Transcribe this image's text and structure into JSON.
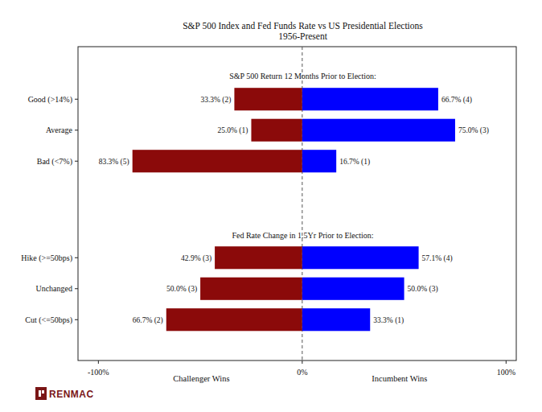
{
  "chart_data": [
    {
      "type": "bar",
      "orientation": "horizontal",
      "data_labels": true,
      "grid": false,
      "tick_labels": "y",
      "title": "S&P 500 Index and Fed Funds Rate vs US Presidential Elections",
      "subtitle": "1956-Present",
      "panel_title": "S&P 500 Return 12 Months Prior to Election:",
      "categories": [
        "Good (>14%)",
        "Average",
        "Bad (<7%)"
      ],
      "xlim": [
        -110,
        105
      ],
      "series": [
        {
          "color": "#8b0a0a",
          "values": [
            -33.3,
            -25.0,
            -83.3
          ],
          "value_labels": [
            "33.3% (2)",
            "25.0% (1)",
            "83.3% (5)"
          ]
        },
        {
          "color": "#0000ff",
          "values": [
            66.7,
            75.0,
            16.7
          ],
          "value_labels": [
            "66.7% (4)",
            "75.0% (3)",
            "16.7% (1)"
          ]
        }
      ]
    },
    {
      "type": "bar",
      "orientation": "horizontal",
      "data_labels": true,
      "grid": false,
      "panel_title": "Fed Rate Change in 1.5Yr Prior to Election:",
      "categories": [
        "Hike (>=50bps)",
        "Unchanged",
        "Cut (<=50bps)"
      ],
      "xlim": [
        -110,
        105
      ],
      "xticks": [
        {
          "value": -100,
          "label": "-100%"
        },
        {
          "value": 0,
          "label": "0%"
        },
        {
          "value": 100,
          "label": "100%"
        }
      ],
      "series": [
        {
          "name": "Challenger Wins",
          "color": "#8b0a0a",
          "values": [
            -42.9,
            -50.0,
            -66.7
          ],
          "value_labels": [
            "42.9% (3)",
            "50.0% (3)",
            "66.7% (2)"
          ]
        },
        {
          "name": "Incumbent Wins",
          "color": "#0000ff",
          "values": [
            57.1,
            50.0,
            33.3
          ],
          "value_labels": [
            "57.1% (4)",
            "50.0% (3)",
            "33.3% (1)"
          ]
        }
      ],
      "source": "RENMAC"
    }
  ]
}
